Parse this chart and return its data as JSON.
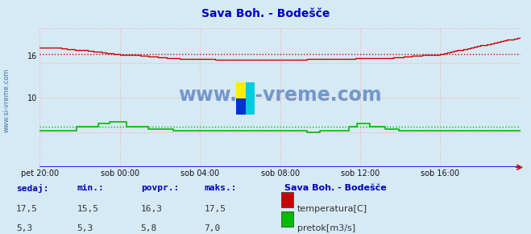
{
  "title": "Sava Boh. - Bodešče",
  "bg_color": "#d6eaf5",
  "x_labels": [
    "pet 20:00",
    "sob 00:00",
    "sob 04:00",
    "sob 08:00",
    "sob 12:00",
    "sob 16:00"
  ],
  "x_ticks_pos": [
    0,
    48,
    96,
    144,
    192,
    240
  ],
  "x_max": 288,
  "y_min": 0,
  "y_max": 20,
  "grid_color": "#ffaaaa",
  "dotted_temp_avg": 16.3,
  "dotted_flow_avg": 5.8,
  "temp_color": "#cc0000",
  "flow_color": "#00bb00",
  "blue_line_color": "#0000dd",
  "watermark_text": "www.si-vreme.com",
  "watermark_color": "#2255aa",
  "left_label_color": "#336699",
  "legend_title": "Sava Boh. - Bodešče",
  "sedaj_label": "sedaj:",
  "min_label": "min.:",
  "povpr_label": "povpr.:",
  "maks_label": "maks.:",
  "temp_sedaj": "17,5",
  "temp_min": "15,5",
  "temp_povpr": "16,3",
  "temp_maks": "17,5",
  "flow_sedaj": "5,3",
  "flow_min": "5,3",
  "flow_povpr": "5,8",
  "flow_maks": "7,0",
  "temp_label": "temperatura[C]",
  "flow_label": "pretok[m3/s]"
}
